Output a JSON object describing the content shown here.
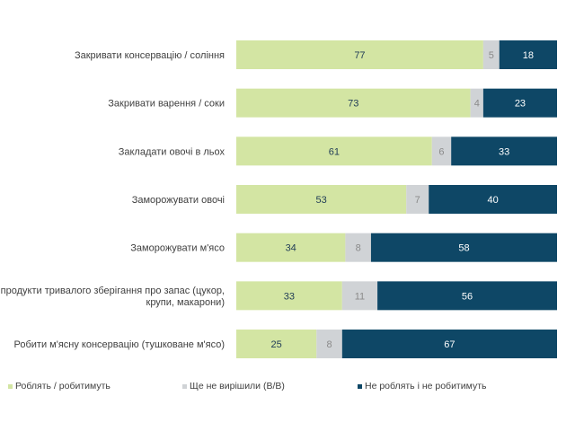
{
  "chart_data": {
    "type": "bar",
    "orientation": "horizontal",
    "stacked": true,
    "categories": [
      "Закривати консервацію / соління",
      "Закривати варення / соки",
      "Закладати овочі в льох",
      "Заморожувати овочі",
      "Заморожувати м'ясо",
      "Закуповувати продукти тривалого зберігання про запас (цукор, крупи, макарони)",
      "Робити м'ясну консервацію (тушковане м'ясо)"
    ],
    "series": [
      {
        "name": "Роблять / робитимуть",
        "color": "#d3e5a3",
        "label_color": "#1f3b56",
        "values": [
          77,
          73,
          61,
          53,
          34,
          33,
          25
        ]
      },
      {
        "name": "Ще не вирішили (В/В)",
        "color": "#d0d3d6",
        "label_color": "#8a8a8a",
        "values": [
          5,
          4,
          6,
          7,
          8,
          11,
          8
        ]
      },
      {
        "name": "Не роблять і не робитимуть",
        "color": "#0e4766",
        "label_color": "#ffffff",
        "values": [
          18,
          23,
          33,
          40,
          58,
          56,
          67
        ]
      }
    ],
    "xlim": [
      0,
      100
    ],
    "grid": false,
    "legend_position": "bottom",
    "data_labels": true
  }
}
